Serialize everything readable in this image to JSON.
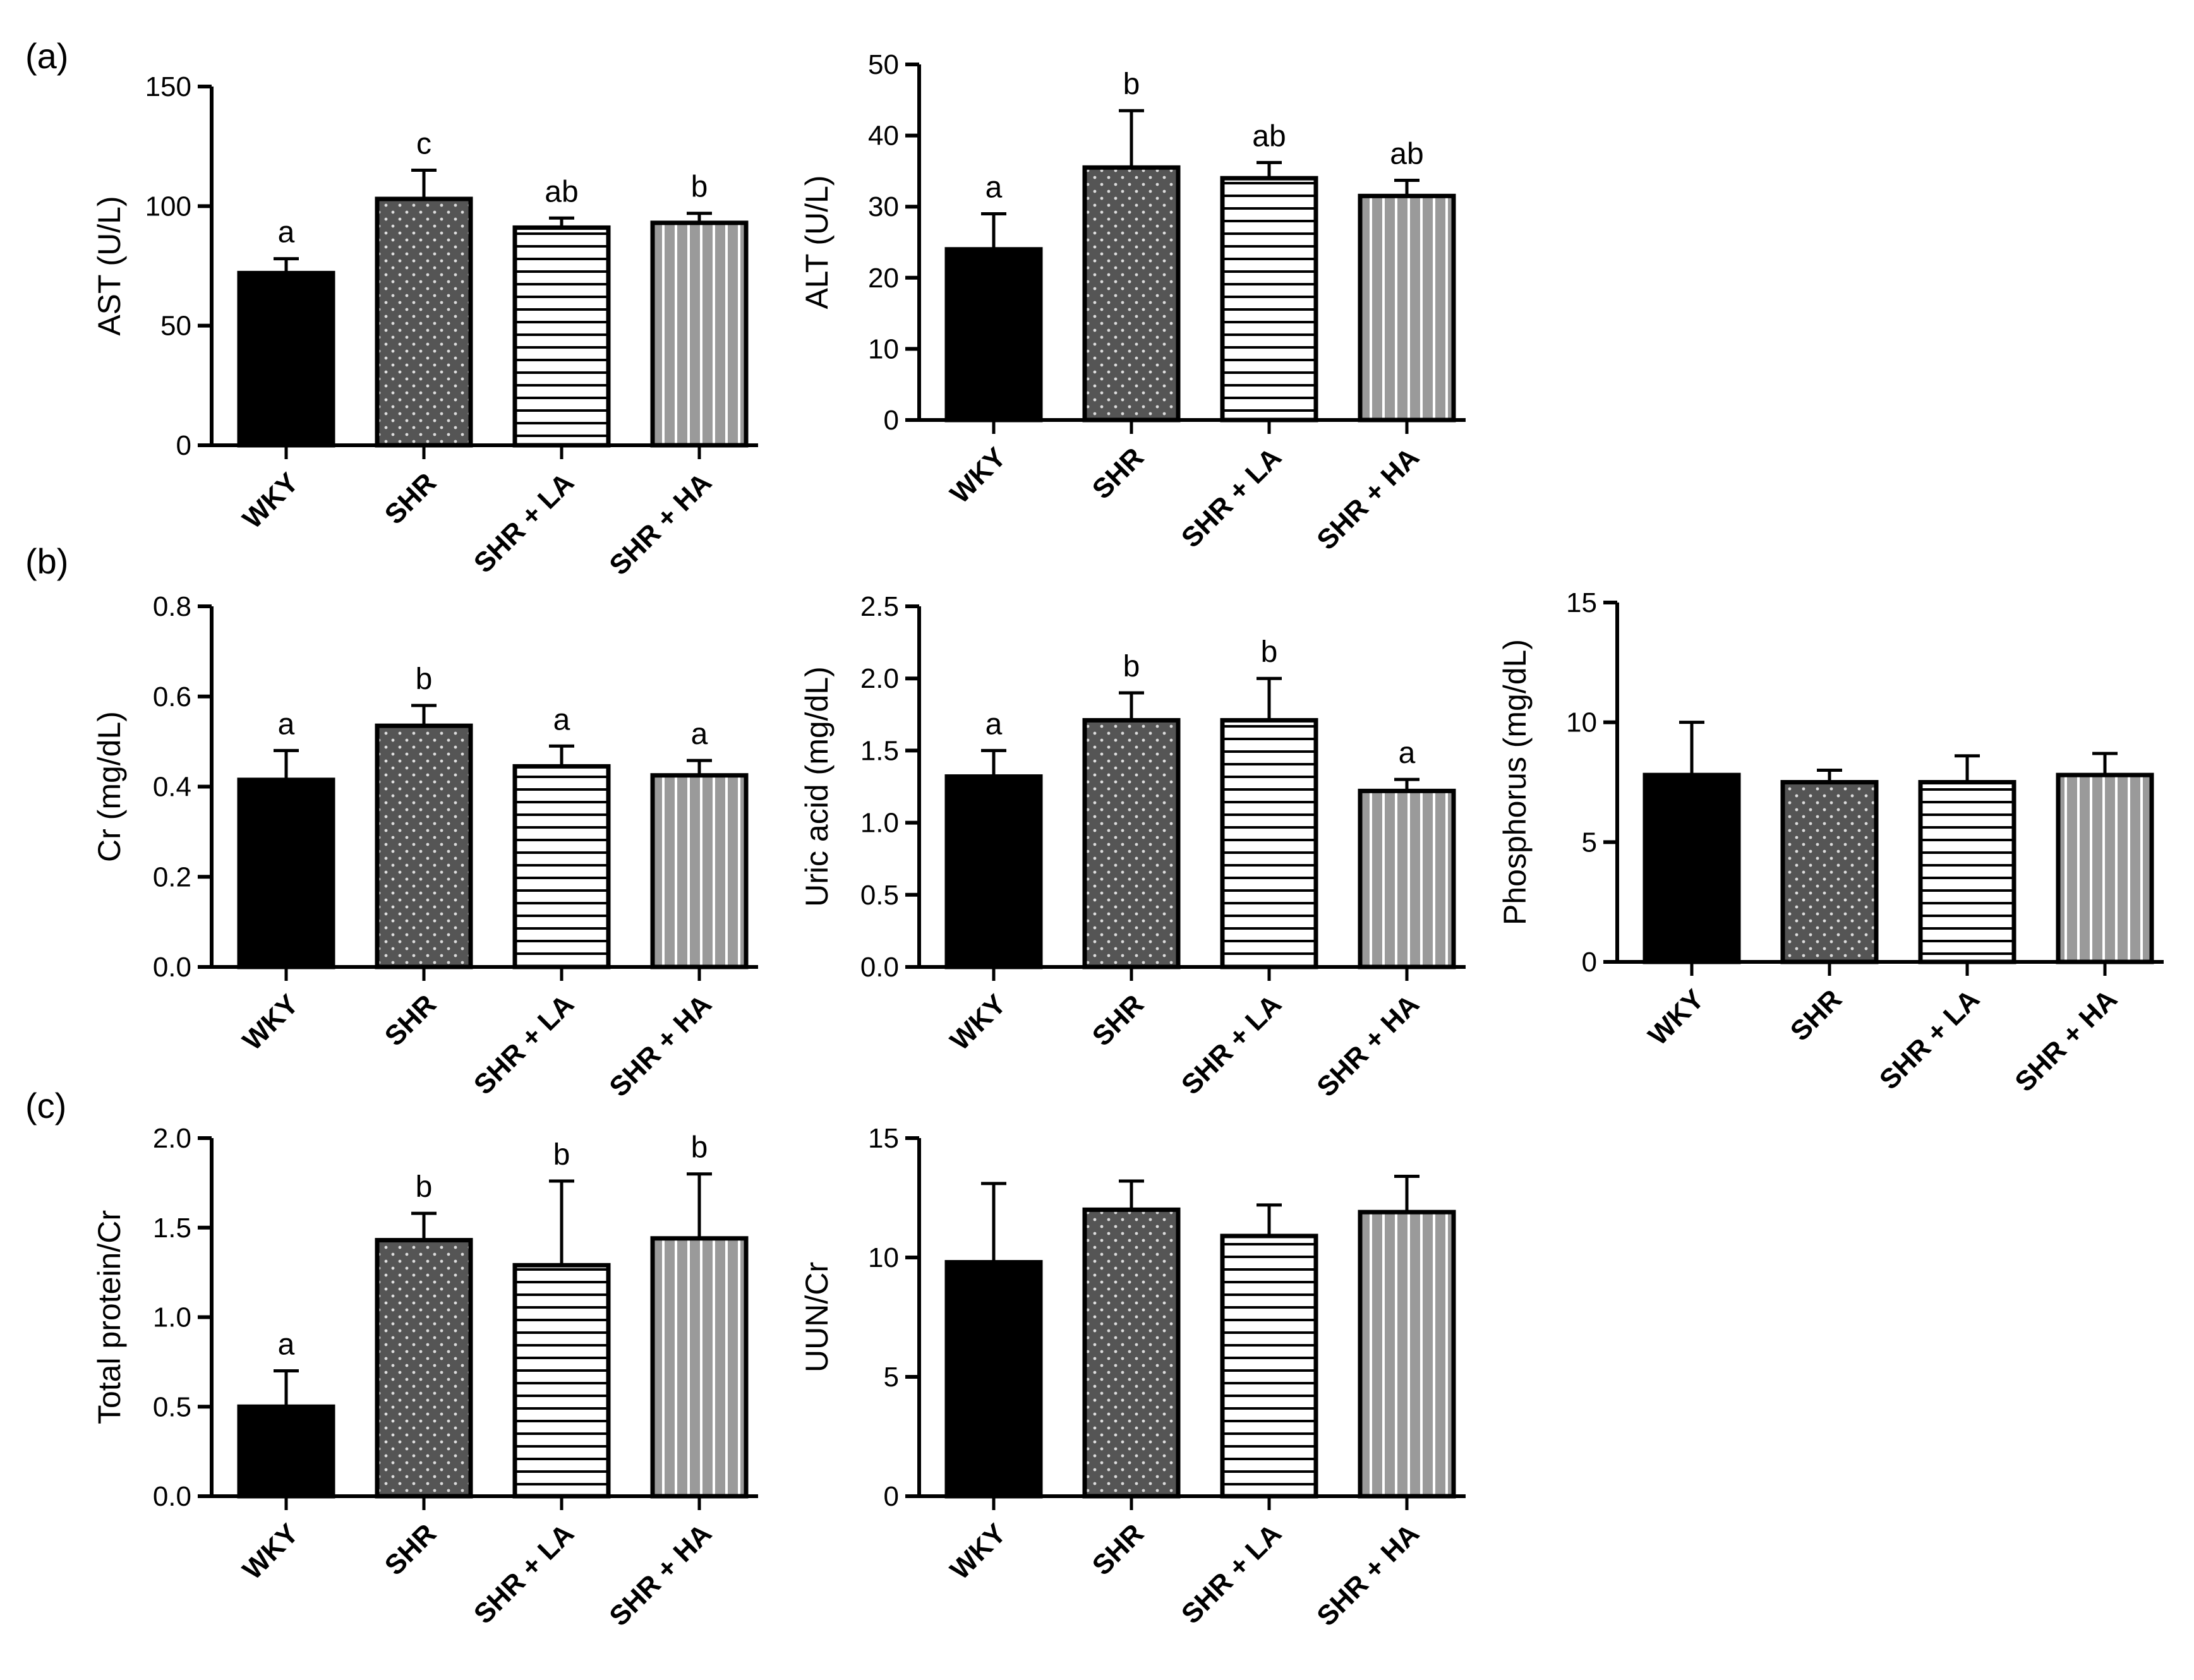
{
  "panel_labels": [
    "(a)",
    "(b)",
    "(c)"
  ],
  "categories": [
    "WKY",
    "SHR",
    "SHR + LA",
    "SHR + HA"
  ],
  "colors": {
    "ink": "#000000",
    "fill_dots": "#555555",
    "background": "#ffffff"
  },
  "chart_data": [
    {
      "type": "bar",
      "panel": "(a)",
      "ylabel": "AST (U/L)",
      "categories": [
        "WKY",
        "SHR",
        "SHR + LA",
        "SHR + HA"
      ],
      "values": [
        72,
        103,
        91,
        93
      ],
      "errors": [
        6,
        12,
        4,
        4
      ],
      "significance": [
        "a",
        "c",
        "ab",
        "b"
      ],
      "ylim": [
        0,
        150
      ],
      "yticks": [
        "0",
        "50",
        "100",
        "150"
      ],
      "grid": false
    },
    {
      "type": "bar",
      "panel": "(a)",
      "ylabel": "ALT (U/L)",
      "categories": [
        "WKY",
        "SHR",
        "SHR + LA",
        "SHR + HA"
      ],
      "values": [
        24,
        35.5,
        34,
        31.5
      ],
      "errors": [
        5,
        8,
        2.2,
        2.2
      ],
      "significance": [
        "a",
        "b",
        "ab",
        "ab"
      ],
      "ylim": [
        0,
        50
      ],
      "yticks": [
        "0",
        "10",
        "20",
        "30",
        "40",
        "50"
      ],
      "grid": false
    },
    {
      "type": "bar",
      "panel": "(b)",
      "ylabel": "Cr (mg/dL)",
      "categories": [
        "WKY",
        "SHR",
        "SHR + LA",
        "SHR + HA"
      ],
      "values": [
        0.415,
        0.535,
        0.445,
        0.425
      ],
      "errors": [
        0.065,
        0.045,
        0.045,
        0.033
      ],
      "significance": [
        "a",
        "b",
        "a",
        "a"
      ],
      "ylim": [
        0,
        0.8
      ],
      "yticks": [
        "0.0",
        "0.2",
        "0.4",
        "0.6",
        "0.8"
      ],
      "grid": false
    },
    {
      "type": "bar",
      "panel": "(b)",
      "ylabel": "Uric acid (mg/dL)",
      "categories": [
        "WKY",
        "SHR",
        "SHR + LA",
        "SHR + HA"
      ],
      "values": [
        1.32,
        1.71,
        1.71,
        1.22
      ],
      "errors": [
        0.18,
        0.19,
        0.29,
        0.08
      ],
      "significance": [
        "a",
        "b",
        "b",
        "a"
      ],
      "ylim": [
        0,
        2.5
      ],
      "yticks": [
        "0.0",
        "0.5",
        "1.0",
        "1.5",
        "2.0",
        "2.5"
      ],
      "grid": false
    },
    {
      "type": "bar",
      "panel": "(b)",
      "ylabel": "Phosphorus (mg/dL)",
      "categories": [
        "WKY",
        "SHR",
        "SHR + LA",
        "SHR + HA"
      ],
      "values": [
        7.8,
        7.5,
        7.5,
        7.8
      ],
      "errors": [
        2.2,
        0.5,
        1.1,
        0.9
      ],
      "significance": [
        "",
        "",
        "",
        ""
      ],
      "ylim": [
        0,
        15
      ],
      "yticks": [
        "0",
        "5",
        "10",
        "15"
      ],
      "grid": false
    },
    {
      "type": "bar",
      "panel": "(c)",
      "ylabel": "Total protein/Cr",
      "categories": [
        "WKY",
        "SHR",
        "SHR + LA",
        "SHR + HA"
      ],
      "values": [
        0.5,
        1.43,
        1.29,
        1.44
      ],
      "errors": [
        0.2,
        0.15,
        0.47,
        0.36
      ],
      "significance": [
        "a",
        "b",
        "b",
        "b"
      ],
      "ylim": [
        0,
        2.0
      ],
      "yticks": [
        "0.0",
        "0.5",
        "1.0",
        "1.5",
        "2.0"
      ],
      "grid": false
    },
    {
      "type": "bar",
      "panel": "(c)",
      "ylabel": "UUN/Cr",
      "categories": [
        "WKY",
        "SHR",
        "SHR + LA",
        "SHR + HA"
      ],
      "values": [
        9.8,
        12.0,
        10.9,
        11.9
      ],
      "errors": [
        3.3,
        1.2,
        1.3,
        1.5
      ],
      "significance": [
        "",
        "",
        "",
        ""
      ],
      "ylim": [
        0,
        15
      ],
      "yticks": [
        "0",
        "5",
        "10",
        "15"
      ],
      "grid": false
    }
  ]
}
